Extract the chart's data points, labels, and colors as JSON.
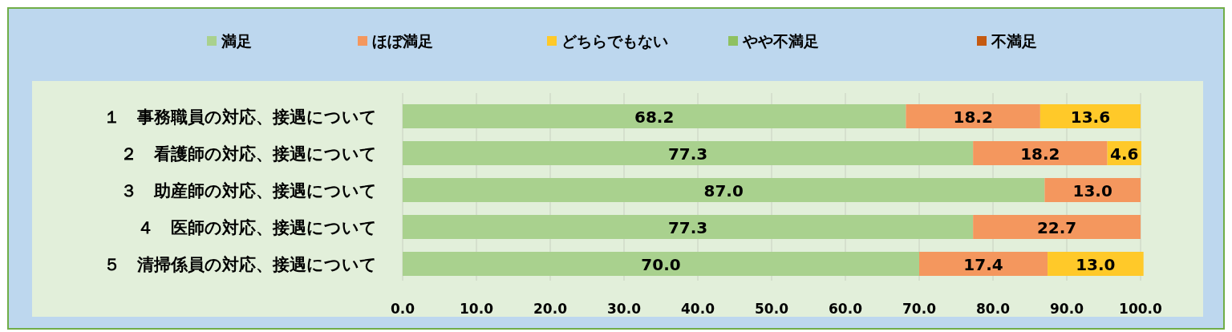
{
  "chart_data": {
    "type": "bar",
    "orientation": "horizontal",
    "stacked": true,
    "legend": "top",
    "grid": "x",
    "categories": [
      "１　事務職員の対応、接遇について",
      "２　看護師の対応、接遇について",
      "３　助産師の対応、接遇について",
      "４　医師の対応、接遇について",
      "５　清掃係員の対応、接遇について"
    ],
    "series": [
      {
        "name": "満足",
        "color": "#a9d18e",
        "values": [
          68.2,
          77.3,
          87.0,
          77.3,
          70.0
        ],
        "value_labels": [
          "68.2",
          "77.3",
          "87.0",
          "77.3",
          "70.0"
        ]
      },
      {
        "name": "ほぼ満足",
        "color": "#f4975e",
        "values": [
          18.2,
          18.2,
          13.0,
          22.7,
          17.4
        ],
        "value_labels": [
          "18.2",
          "18.2",
          "13.0",
          "22.7",
          "17.4"
        ]
      },
      {
        "name": "どちらでもない",
        "color": "#ffc929",
        "values": [
          13.6,
          4.6,
          null,
          null,
          13.0
        ],
        "value_labels": [
          "13.6",
          "4.6",
          null,
          null,
          "13.0"
        ]
      },
      {
        "name": "やや不満足",
        "color": "#8fc161",
        "values": [
          null,
          null,
          null,
          null,
          null
        ]
      },
      {
        "name": "不満足",
        "color": "#c55a11",
        "values": [
          null,
          null,
          null,
          null,
          null
        ]
      }
    ],
    "xlim": [
      0,
      100
    ],
    "xticks": [
      {
        "value": 0,
        "label": "0.0"
      },
      {
        "value": 10,
        "label": "10.0"
      },
      {
        "value": 20,
        "label": "20.0"
      },
      {
        "value": 30,
        "label": "30.0"
      },
      {
        "value": 40,
        "label": "40.0"
      },
      {
        "value": 50,
        "label": "50.0"
      },
      {
        "value": 60,
        "label": "60.0"
      },
      {
        "value": 70,
        "label": "70.0"
      },
      {
        "value": 80,
        "label": "80.0"
      },
      {
        "value": 90,
        "label": "90.0"
      },
      {
        "value": 100,
        "label": "100.0"
      }
    ]
  }
}
